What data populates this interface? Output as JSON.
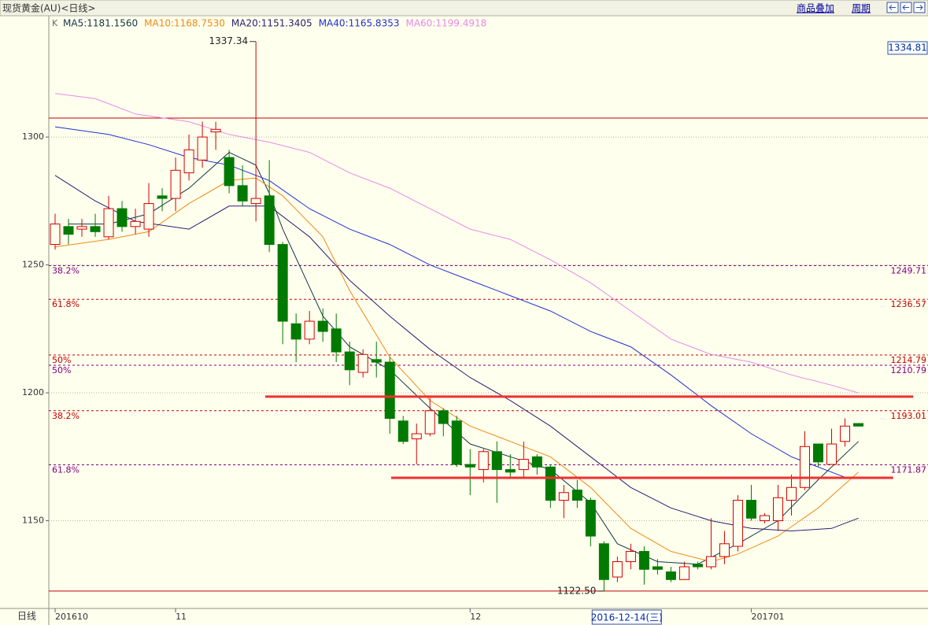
{
  "header": {
    "title": "现货黄金(AU)<日线>",
    "buttons": [
      "商品叠加",
      "周期"
    ]
  },
  "chart_data": {
    "type": "candlestick",
    "legend_prefix": "K",
    "ylim": [
      1115.7,
      1346.8
    ],
    "yticks": [
      1150,
      1200,
      1250,
      1300
    ],
    "grid": true,
    "xlim": [
      -0.47,
      65.2
    ],
    "xticks": [
      {
        "value": 0,
        "label": "201610"
      },
      {
        "value": 9,
        "label": "11"
      },
      {
        "value": 31,
        "label": "12"
      },
      {
        "value": 52,
        "label": "201701"
      }
    ],
    "x_axis_label": "日线",
    "cursor": {
      "x": 42.7,
      "label": "2016-12-14(三)"
    },
    "price_box": {
      "value": 1334.81
    },
    "up_color": "#d40000",
    "down_color": "#007a00",
    "open": [
      1258,
      1265,
      1264,
      1265,
      1261,
      1272,
      1265,
      1264,
      1277,
      1276,
      1286,
      1291,
      1302,
      1292,
      1281,
      1274,
      1277,
      1258,
      1227,
      1221,
      1228,
      1225,
      1216,
      1208,
      1213,
      1212,
      1189,
      1182,
      1184,
      1193,
      1189,
      1172,
      1170,
      1177,
      1170,
      1170,
      1175,
      1171,
      1158,
      1162,
      1158,
      1141,
      1128,
      1134,
      1138,
      1132,
      1130,
      1127,
      1133,
      1132,
      1136,
      1140,
      1158,
      1150,
      1150,
      1158,
      1163,
      1180,
      1172,
      1181,
      1188
    ],
    "high": [
      1270,
      1268,
      1268,
      1270,
      1277,
      1275,
      1272,
      1282,
      1280,
      1292,
      1301,
      1306,
      1306,
      1295,
      1289,
      1337.34,
      1291,
      1259,
      1231,
      1232,
      1233,
      1231,
      1220,
      1217,
      1220,
      1214,
      1191,
      1188,
      1198,
      1194,
      1191,
      1178,
      1178,
      1181,
      1176,
      1181,
      1176,
      1172,
      1164,
      1166,
      1159,
      1142,
      1136,
      1141,
      1140,
      1135,
      1132,
      1134,
      1134,
      1151,
      1146,
      1160,
      1164,
      1153,
      1164,
      1168,
      1185,
      1180,
      1186,
      1190,
      1188
    ],
    "low": [
      1256,
      1258,
      1261,
      1261,
      1260,
      1263,
      1262,
      1261,
      1271,
      1271,
      1283,
      1288,
      1295,
      1278,
      1273,
      1267,
      1255,
      1219,
      1212,
      1219,
      1220,
      1212,
      1203,
      1206,
      1206,
      1184,
      1180,
      1172,
      1183,
      1183,
      1171,
      1160,
      1165,
      1157,
      1167,
      1167,
      1168,
      1155,
      1151,
      1155,
      1140,
      1122.5,
      1126,
      1131,
      1125,
      1129,
      1126,
      1127,
      1131,
      1131,
      1133,
      1138,
      1150,
      1149,
      1146,
      1152,
      1162,
      1171,
      1172,
      1179,
      1187
    ],
    "close": [
      1266,
      1262,
      1265,
      1263,
      1272,
      1265,
      1267,
      1274,
      1276,
      1287,
      1295,
      1300,
      1303,
      1281,
      1275,
      1276,
      1258,
      1228,
      1221,
      1228,
      1224,
      1216,
      1209,
      1215,
      1212,
      1190,
      1181,
      1184,
      1193,
      1188,
      1172,
      1171,
      1177,
      1170,
      1169,
      1174,
      1171,
      1158,
      1161,
      1158,
      1144,
      1127,
      1134,
      1138,
      1131,
      1131,
      1127,
      1132,
      1132,
      1136,
      1141,
      1158,
      1151,
      1152,
      1159,
      1163,
      1179,
      1173,
      1180,
      1187,
      1187
    ],
    "ma": [
      {
        "name": "MA5:1181.1560",
        "color": "#143848",
        "x": [
          1,
          4,
          7,
          10,
          13,
          15,
          16,
          17,
          20,
          22,
          25,
          28,
          31,
          34,
          37,
          40,
          42,
          45,
          48,
          51,
          54,
          57,
          60
        ],
        "values": [
          1266,
          1266,
          1270,
          1280,
          1294,
          1289,
          1278,
          1264,
          1230,
          1218,
          1209,
          1194,
          1180,
          1175,
          1170,
          1157,
          1141,
          1134,
          1133,
          1141,
          1150,
          1166,
          1181
        ]
      },
      {
        "name": "MA10:1168.7530",
        "color": "#f08a10",
        "x": [
          0,
          4,
          7,
          10,
          13,
          15,
          17,
          20,
          22,
          25,
          28,
          31,
          34,
          37,
          40,
          43,
          46,
          49,
          51,
          54,
          57,
          60
        ],
        "values": [
          1257,
          1260,
          1263,
          1274,
          1283,
          1284,
          1277,
          1261,
          1240,
          1214,
          1197,
          1187,
          1181,
          1175,
          1163,
          1147,
          1138,
          1134,
          1137,
          1144,
          1155,
          1169
        ]
      },
      {
        "name": "MA20:1151.3405",
        "color": "#2a1e70",
        "x": [
          0,
          3,
          6,
          10,
          13,
          16,
          19,
          22,
          25,
          28,
          31,
          34,
          37,
          40,
          43,
          46,
          49,
          52,
          55,
          58,
          60
        ],
        "values": [
          1285,
          1275,
          1267,
          1264,
          1273,
          1273,
          1261,
          1244,
          1230,
          1217,
          1206,
          1197,
          1187,
          1175,
          1163,
          1155,
          1150,
          1147,
          1146,
          1147,
          1151
        ]
      },
      {
        "name": "MA40:1165.8353",
        "color": "#2030d0",
        "x": [
          0,
          4,
          7,
          10,
          13,
          16,
          19,
          22,
          25,
          28,
          31,
          34,
          37,
          40,
          43,
          46,
          49,
          52,
          55,
          58,
          59
        ],
        "values": [
          1304,
          1301,
          1297,
          1292,
          1289,
          1283,
          1272,
          1264,
          1258,
          1250,
          1244,
          1238,
          1232,
          1224,
          1218,
          1207,
          1195,
          1184,
          1175,
          1169,
          1167
        ]
      },
      {
        "name": "MA60:1199.4918",
        "color": "#e88ae8",
        "x": [
          0,
          3,
          6,
          10,
          13,
          16,
          19,
          22,
          25,
          28,
          31,
          34,
          37,
          40,
          43,
          46,
          49,
          52,
          55,
          58,
          60
        ],
        "values": [
          1317,
          1315,
          1309,
          1306,
          1301,
          1298,
          1294,
          1286,
          1280,
          1272,
          1264,
          1260,
          1252,
          1243,
          1232,
          1221,
          1215,
          1212,
          1207,
          1203,
          1200
        ]
      }
    ],
    "levels": [
      {
        "label": "38.2%",
        "value": 1249.71,
        "color": "#800080"
      },
      {
        "label": "61.8%",
        "value": 1236.57,
        "color": "#c00000"
      },
      {
        "label": "50%",
        "value": 1214.79,
        "color": "#c00000"
      },
      {
        "label": "50%",
        "value": 1210.79,
        "color": "#800080"
      },
      {
        "label": "38.2%",
        "value": 1193.01,
        "color": "#c00000"
      },
      {
        "label": "61.8%",
        "value": 1171.87,
        "color": "#800080"
      }
    ],
    "lines": [
      {
        "value": 1307.4,
        "color": "#c00000"
      },
      {
        "value": 1122.5,
        "color": "#c00000"
      }
    ],
    "bold_lines": [
      {
        "value": 1198.5,
        "from": 15.7,
        "to": 64.1,
        "color": "#f03030"
      },
      {
        "value": 1166.8,
        "from": 25.1,
        "to": 62.6,
        "color": "#f03030"
      }
    ],
    "annotations": [
      {
        "x": 15,
        "value": 1337.34,
        "label": "1337.34"
      },
      {
        "x": 41,
        "value": 1122.5,
        "label": "1122.50"
      }
    ]
  }
}
